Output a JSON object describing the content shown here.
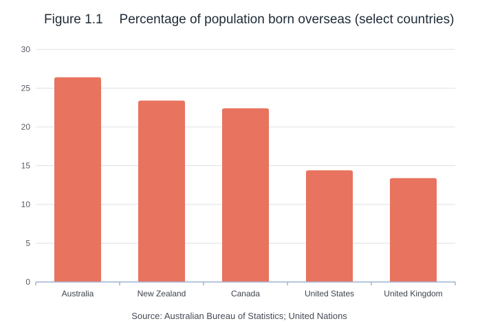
{
  "figure_number": "Figure 1.1",
  "chart_data": {
    "type": "bar",
    "title": "Percentage of population born overseas (select countries)",
    "xlabel": "",
    "ylabel": "",
    "categories": [
      "Australia",
      "New Zealand",
      "Canada",
      "United States",
      "United Kingdom"
    ],
    "values": [
      26.4,
      23.4,
      22.4,
      14.4,
      13.4
    ],
    "ylim": [
      0,
      30
    ],
    "yticks": [
      0,
      5,
      10,
      15,
      20,
      25,
      30
    ],
    "grid": true,
    "bar_color": "#E8735E",
    "source": "Source: Australian Bureau of Statistics; United Nations"
  }
}
